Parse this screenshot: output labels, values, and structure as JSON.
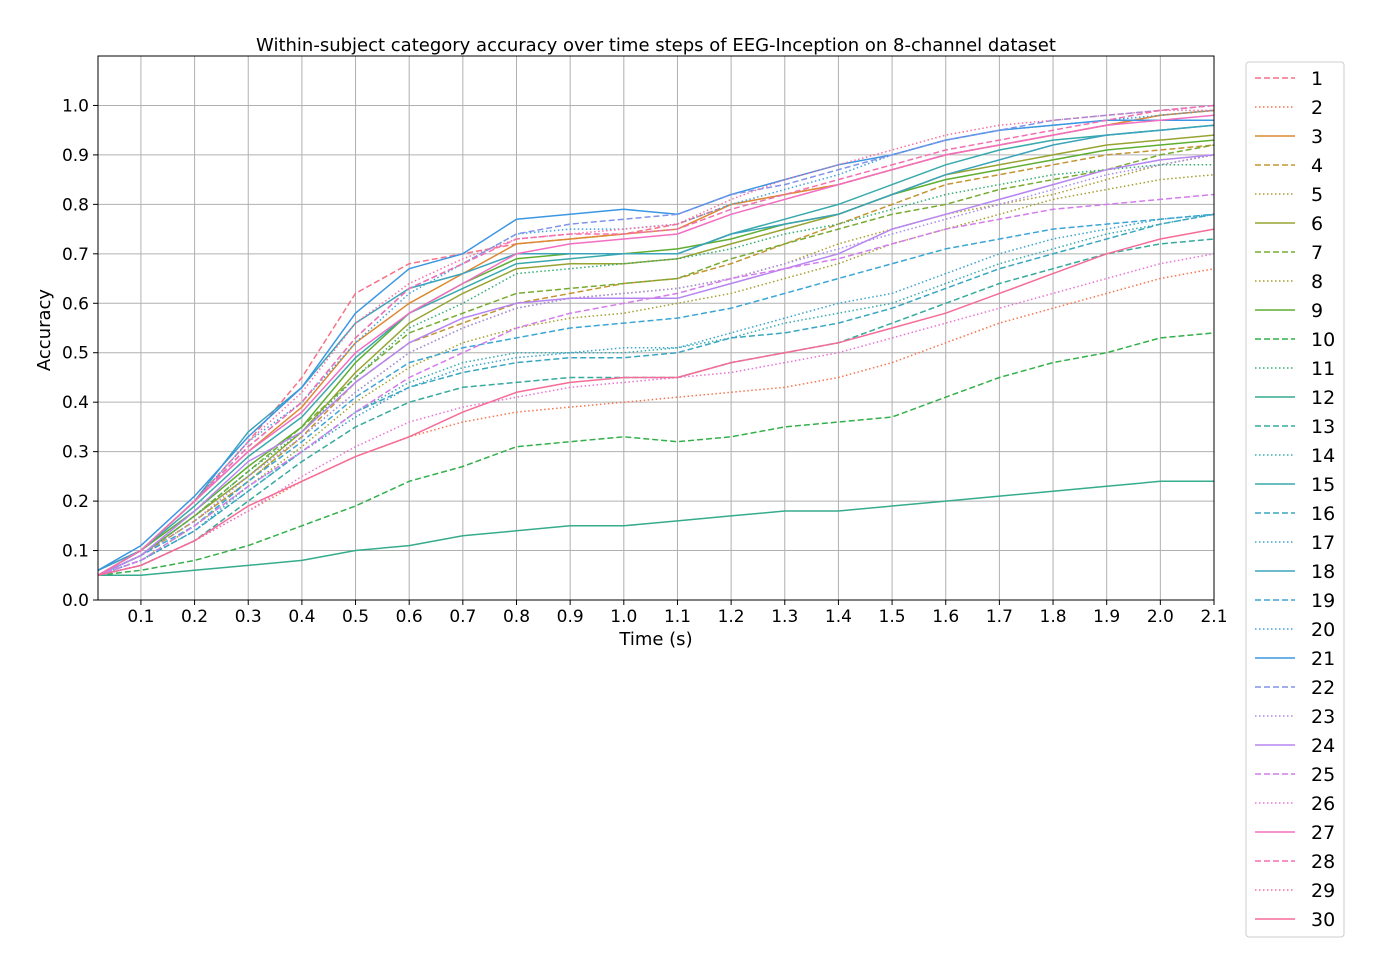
{
  "chart_data": {
    "type": "line",
    "title": "Within-subject category accuracy over time steps of EEG-Inception on 8-channel dataset",
    "xlabel": "Time (s)",
    "ylabel": "Accuracy",
    "xlim": [
      0.02,
      2.1
    ],
    "ylim": [
      0.0,
      1.1
    ],
    "x_ticks": [
      0.1,
      0.2,
      0.3,
      0.4,
      0.5,
      0.6,
      0.7,
      0.8,
      0.9,
      1.0,
      1.1,
      1.2,
      1.3,
      1.4,
      1.5,
      1.6,
      1.7,
      1.8,
      1.9,
      2.0,
      2.1
    ],
    "x_tick_labels": [
      "0.1",
      "0.2",
      "0.3",
      "0.4",
      "0.5",
      "0.6",
      "0.7",
      "0.8",
      "0.9",
      "1.0",
      "1.1",
      "1.2",
      "1.3",
      "1.4",
      "1.5",
      "1.6",
      "1.7",
      "1.8",
      "1.9",
      "2.0",
      "2.1"
    ],
    "y_ticks": [
      0.0,
      0.1,
      0.2,
      0.3,
      0.4,
      0.5,
      0.6,
      0.7,
      0.8,
      0.9,
      1.0
    ],
    "y_tick_labels": [
      "0.0",
      "0.1",
      "0.2",
      "0.3",
      "0.4",
      "0.5",
      "0.6",
      "0.7",
      "0.8",
      "0.9",
      "1.0"
    ],
    "grid": true,
    "legend_position": "right, outside plot",
    "x": [
      0.02,
      0.1,
      0.2,
      0.3,
      0.4,
      0.5,
      0.6,
      0.7,
      0.8,
      0.9,
      1.0,
      1.1,
      1.2,
      1.3,
      1.4,
      1.5,
      1.6,
      1.7,
      1.8,
      1.9,
      2.0,
      2.1
    ],
    "series": [
      {
        "name": "1",
        "color": "#f77189",
        "dash": "dashed",
        "values": [
          0.06,
          0.1,
          0.2,
          0.32,
          0.45,
          0.62,
          0.68,
          0.7,
          0.72,
          0.73,
          0.74,
          0.76,
          0.8,
          0.82,
          0.84,
          0.87,
          0.9,
          0.92,
          0.94,
          0.96,
          0.98,
          0.99
        ]
      },
      {
        "name": "2",
        "color": "#f7754f",
        "dash": "dotted",
        "values": [
          0.05,
          0.07,
          0.12,
          0.18,
          0.24,
          0.29,
          0.33,
          0.36,
          0.38,
          0.39,
          0.4,
          0.41,
          0.42,
          0.43,
          0.45,
          0.48,
          0.52,
          0.56,
          0.59,
          0.62,
          0.65,
          0.67
        ]
      },
      {
        "name": "3",
        "color": "#dc8932",
        "dash": "solid",
        "values": [
          0.06,
          0.1,
          0.2,
          0.3,
          0.39,
          0.52,
          0.6,
          0.66,
          0.72,
          0.73,
          0.74,
          0.75,
          0.8,
          0.82,
          0.84,
          0.87,
          0.9,
          0.92,
          0.94,
          0.96,
          0.98,
          0.99
        ]
      },
      {
        "name": "4",
        "color": "#c39532",
        "dash": "dashed",
        "values": [
          0.05,
          0.09,
          0.16,
          0.24,
          0.33,
          0.44,
          0.52,
          0.56,
          0.6,
          0.62,
          0.64,
          0.65,
          0.68,
          0.72,
          0.76,
          0.8,
          0.84,
          0.86,
          0.88,
          0.9,
          0.91,
          0.92
        ]
      },
      {
        "name": "5",
        "color": "#ae9d31",
        "dash": "dotted",
        "values": [
          0.05,
          0.09,
          0.16,
          0.24,
          0.33,
          0.42,
          0.5,
          0.55,
          0.59,
          0.61,
          0.62,
          0.63,
          0.65,
          0.68,
          0.72,
          0.75,
          0.78,
          0.8,
          0.82,
          0.85,
          0.88,
          0.9
        ]
      },
      {
        "name": "6",
        "color": "#97a431",
        "dash": "solid",
        "values": [
          0.05,
          0.09,
          0.17,
          0.25,
          0.34,
          0.46,
          0.56,
          0.62,
          0.67,
          0.68,
          0.68,
          0.69,
          0.72,
          0.75,
          0.78,
          0.82,
          0.86,
          0.88,
          0.9,
          0.92,
          0.93,
          0.94
        ]
      },
      {
        "name": "7",
        "color": "#77ab31",
        "dash": "dashed",
        "values": [
          0.05,
          0.09,
          0.17,
          0.26,
          0.35,
          0.45,
          0.54,
          0.58,
          0.62,
          0.63,
          0.64,
          0.65,
          0.69,
          0.72,
          0.75,
          0.78,
          0.8,
          0.83,
          0.85,
          0.87,
          0.9,
          0.92
        ]
      },
      {
        "name": "8",
        "color": "#a6a02f",
        "dash": "dotted",
        "values": [
          0.05,
          0.08,
          0.15,
          0.23,
          0.31,
          0.4,
          0.47,
          0.52,
          0.55,
          0.57,
          0.58,
          0.6,
          0.62,
          0.65,
          0.68,
          0.72,
          0.75,
          0.78,
          0.81,
          0.83,
          0.85,
          0.86
        ]
      },
      {
        "name": "9",
        "color": "#5fae32",
        "dash": "solid",
        "values": [
          0.05,
          0.1,
          0.18,
          0.27,
          0.35,
          0.48,
          0.58,
          0.64,
          0.69,
          0.7,
          0.7,
          0.71,
          0.73,
          0.76,
          0.78,
          0.82,
          0.85,
          0.87,
          0.89,
          0.91,
          0.92,
          0.93
        ]
      },
      {
        "name": "10",
        "color": "#33b04a",
        "dash": "dashed",
        "values": [
          0.05,
          0.06,
          0.08,
          0.11,
          0.15,
          0.19,
          0.24,
          0.27,
          0.31,
          0.32,
          0.33,
          0.32,
          0.33,
          0.35,
          0.36,
          0.37,
          0.41,
          0.45,
          0.48,
          0.5,
          0.53,
          0.54
        ]
      },
      {
        "name": "11",
        "color": "#34ae73",
        "dash": "dotted",
        "values": [
          0.05,
          0.09,
          0.17,
          0.26,
          0.34,
          0.45,
          0.55,
          0.6,
          0.66,
          0.67,
          0.68,
          0.69,
          0.71,
          0.74,
          0.76,
          0.79,
          0.82,
          0.84,
          0.86,
          0.87,
          0.88,
          0.88
        ]
      },
      {
        "name": "12",
        "color": "#35ac8d",
        "dash": "solid",
        "values": [
          0.05,
          0.05,
          0.06,
          0.07,
          0.08,
          0.1,
          0.11,
          0.13,
          0.14,
          0.15,
          0.15,
          0.16,
          0.17,
          0.18,
          0.18,
          0.19,
          0.2,
          0.21,
          0.22,
          0.23,
          0.24,
          0.24
        ]
      },
      {
        "name": "13",
        "color": "#36aa9e",
        "dash": "dashed",
        "values": [
          0.05,
          0.07,
          0.12,
          0.2,
          0.28,
          0.35,
          0.4,
          0.43,
          0.44,
          0.45,
          0.45,
          0.45,
          0.48,
          0.5,
          0.52,
          0.56,
          0.6,
          0.64,
          0.67,
          0.7,
          0.72,
          0.73
        ]
      },
      {
        "name": "14",
        "color": "#37abae",
        "dash": "dotted",
        "values": [
          0.05,
          0.08,
          0.14,
          0.22,
          0.3,
          0.38,
          0.44,
          0.48,
          0.5,
          0.5,
          0.5,
          0.51,
          0.53,
          0.56,
          0.58,
          0.6,
          0.64,
          0.68,
          0.71,
          0.74,
          0.76,
          0.78
        ]
      },
      {
        "name": "15",
        "color": "#38aaac",
        "dash": "solid",
        "values": [
          0.05,
          0.1,
          0.19,
          0.29,
          0.37,
          0.49,
          0.58,
          0.63,
          0.68,
          0.69,
          0.7,
          0.7,
          0.74,
          0.77,
          0.8,
          0.84,
          0.88,
          0.91,
          0.93,
          0.94,
          0.95,
          0.96
        ]
      },
      {
        "name": "16",
        "color": "#39a7c1",
        "dash": "dashed",
        "values": [
          0.05,
          0.08,
          0.14,
          0.22,
          0.3,
          0.38,
          0.43,
          0.46,
          0.48,
          0.49,
          0.49,
          0.5,
          0.53,
          0.54,
          0.56,
          0.59,
          0.63,
          0.67,
          0.7,
          0.73,
          0.76,
          0.78
        ]
      },
      {
        "name": "17",
        "color": "#3ca4cc",
        "dash": "dotted",
        "values": [
          0.05,
          0.08,
          0.14,
          0.23,
          0.3,
          0.37,
          0.43,
          0.47,
          0.49,
          0.5,
          0.51,
          0.51,
          0.54,
          0.57,
          0.6,
          0.62,
          0.66,
          0.7,
          0.73,
          0.75,
          0.77,
          0.78
        ]
      },
      {
        "name": "18",
        "color": "#3ba3ba",
        "dash": "solid",
        "values": [
          0.06,
          0.1,
          0.2,
          0.34,
          0.43,
          0.56,
          0.63,
          0.66,
          0.7,
          0.7,
          0.7,
          0.7,
          0.74,
          0.76,
          0.78,
          0.82,
          0.86,
          0.89,
          0.92,
          0.94,
          0.95,
          0.96
        ]
      },
      {
        "name": "19",
        "color": "#3ba6d6",
        "dash": "dashed",
        "values": [
          0.05,
          0.09,
          0.15,
          0.24,
          0.32,
          0.41,
          0.48,
          0.51,
          0.53,
          0.55,
          0.56,
          0.57,
          0.59,
          0.62,
          0.65,
          0.68,
          0.71,
          0.73,
          0.75,
          0.76,
          0.77,
          0.78
        ]
      },
      {
        "name": "20",
        "color": "#41a0e2",
        "dash": "dotted",
        "values": [
          0.06,
          0.1,
          0.2,
          0.32,
          0.4,
          0.52,
          0.62,
          0.68,
          0.74,
          0.75,
          0.75,
          0.76,
          0.8,
          0.83,
          0.86,
          0.9,
          0.93,
          0.95,
          0.96,
          0.97,
          0.98,
          0.99
        ]
      },
      {
        "name": "21",
        "color": "#3c97e3",
        "dash": "solid",
        "values": [
          0.06,
          0.11,
          0.21,
          0.33,
          0.43,
          0.58,
          0.67,
          0.7,
          0.77,
          0.78,
          0.79,
          0.78,
          0.82,
          0.85,
          0.88,
          0.9,
          0.93,
          0.95,
          0.96,
          0.97,
          0.97,
          0.97
        ]
      },
      {
        "name": "22",
        "color": "#8094ea",
        "dash": "dashed",
        "values": [
          0.05,
          0.1,
          0.2,
          0.31,
          0.4,
          0.53,
          0.63,
          0.68,
          0.74,
          0.76,
          0.77,
          0.78,
          0.82,
          0.84,
          0.87,
          0.9,
          0.93,
          0.95,
          0.97,
          0.98,
          0.99,
          1.0
        ]
      },
      {
        "name": "23",
        "color": "#a88cee",
        "dash": "dotted",
        "values": [
          0.05,
          0.09,
          0.16,
          0.25,
          0.33,
          0.42,
          0.5,
          0.55,
          0.59,
          0.61,
          0.62,
          0.63,
          0.65,
          0.68,
          0.71,
          0.74,
          0.77,
          0.8,
          0.83,
          0.86,
          0.88,
          0.9
        ]
      },
      {
        "name": "24",
        "color": "#b785f1",
        "dash": "solid",
        "values": [
          0.05,
          0.09,
          0.18,
          0.28,
          0.34,
          0.44,
          0.52,
          0.57,
          0.6,
          0.61,
          0.61,
          0.61,
          0.64,
          0.67,
          0.7,
          0.75,
          0.78,
          0.81,
          0.84,
          0.87,
          0.89,
          0.9
        ]
      },
      {
        "name": "25",
        "color": "#d47ceb",
        "dash": "dashed",
        "values": [
          0.05,
          0.08,
          0.15,
          0.23,
          0.3,
          0.38,
          0.45,
          0.5,
          0.55,
          0.58,
          0.6,
          0.62,
          0.65,
          0.67,
          0.69,
          0.72,
          0.75,
          0.77,
          0.79,
          0.8,
          0.81,
          0.82
        ]
      },
      {
        "name": "26",
        "color": "#e874d5",
        "dash": "dotted",
        "values": [
          0.05,
          0.07,
          0.12,
          0.18,
          0.25,
          0.31,
          0.36,
          0.39,
          0.41,
          0.43,
          0.44,
          0.45,
          0.46,
          0.48,
          0.5,
          0.53,
          0.56,
          0.59,
          0.62,
          0.65,
          0.68,
          0.7
        ]
      },
      {
        "name": "27",
        "color": "#f26ec2",
        "dash": "solid",
        "values": [
          0.05,
          0.1,
          0.2,
          0.3,
          0.38,
          0.5,
          0.58,
          0.64,
          0.7,
          0.72,
          0.73,
          0.74,
          0.78,
          0.81,
          0.84,
          0.87,
          0.9,
          0.92,
          0.94,
          0.96,
          0.97,
          0.98
        ]
      },
      {
        "name": "28",
        "color": "#f46fb0",
        "dash": "dashed",
        "values": [
          0.05,
          0.1,
          0.2,
          0.31,
          0.4,
          0.53,
          0.63,
          0.68,
          0.73,
          0.74,
          0.74,
          0.75,
          0.79,
          0.82,
          0.85,
          0.88,
          0.91,
          0.93,
          0.95,
          0.97,
          0.99,
          1.0
        ]
      },
      {
        "name": "29",
        "color": "#f66fa5",
        "dash": "dotted",
        "values": [
          0.05,
          0.1,
          0.2,
          0.32,
          0.42,
          0.56,
          0.64,
          0.69,
          0.73,
          0.74,
          0.75,
          0.76,
          0.81,
          0.85,
          0.88,
          0.91,
          0.94,
          0.96,
          0.97,
          0.98,
          0.99,
          0.99
        ]
      },
      {
        "name": "30",
        "color": "#f56d97",
        "dash": "solid",
        "values": [
          0.05,
          0.07,
          0.12,
          0.19,
          0.24,
          0.29,
          0.33,
          0.38,
          0.42,
          0.44,
          0.45,
          0.45,
          0.48,
          0.5,
          0.52,
          0.55,
          0.58,
          0.62,
          0.66,
          0.7,
          0.73,
          0.75
        ]
      }
    ]
  }
}
